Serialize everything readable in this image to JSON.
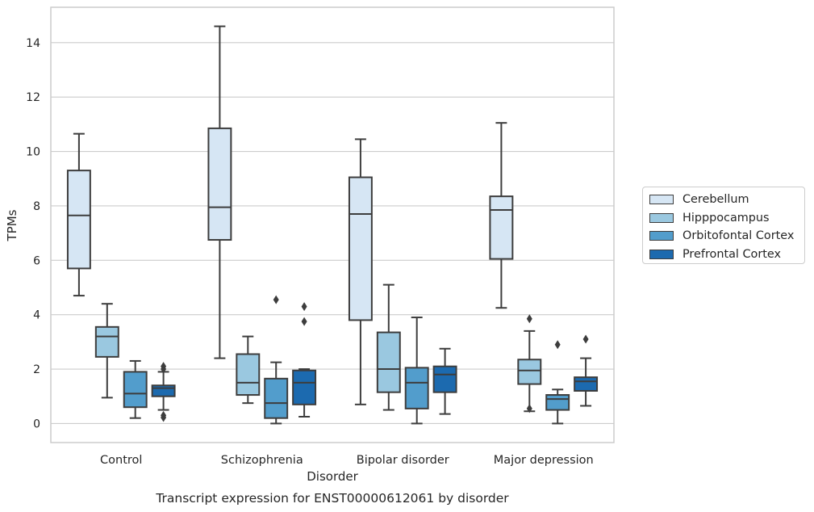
{
  "chart_data": {
    "type": "box",
    "caption": "Transcript expression for ENST00000612061 by disorder",
    "xlabel": "Disorder",
    "ylabel": "TPMs",
    "ylim": [
      -0.7,
      15.3
    ],
    "yticks": [
      0,
      2,
      4,
      6,
      8,
      10,
      12,
      14
    ],
    "grid": "horizontal",
    "legend_position": "center-right, outside plot",
    "categories": [
      "Control",
      "Schizophrenia",
      "Bipolar disorder",
      "Major depression"
    ],
    "series": [
      {
        "name": "Cerebellum",
        "color": "#d6e6f4",
        "boxes": [
          {
            "whislo": 4.7,
            "q1": 5.7,
            "med": 7.65,
            "q3": 9.3,
            "whishi": 10.65,
            "fliers": []
          },
          {
            "whislo": 2.4,
            "q1": 6.75,
            "med": 7.95,
            "q3": 10.85,
            "whishi": 14.6,
            "fliers": []
          },
          {
            "whislo": 0.7,
            "q1": 3.8,
            "med": 7.7,
            "q3": 9.05,
            "whishi": 10.45,
            "fliers": []
          },
          {
            "whislo": 4.25,
            "q1": 6.05,
            "med": 7.85,
            "q3": 8.35,
            "whishi": 11.05,
            "fliers": []
          }
        ]
      },
      {
        "name": "Hipppocampus",
        "color": "#9ac8e0",
        "boxes": [
          {
            "whislo": 0.95,
            "q1": 2.45,
            "med": 3.2,
            "q3": 3.55,
            "whishi": 4.4,
            "fliers": []
          },
          {
            "whislo": 0.75,
            "q1": 1.05,
            "med": 1.5,
            "q3": 2.55,
            "whishi": 3.2,
            "fliers": []
          },
          {
            "whislo": 0.5,
            "q1": 1.15,
            "med": 2.0,
            "q3": 3.35,
            "whishi": 5.1,
            "fliers": []
          },
          {
            "whislo": 0.45,
            "q1": 1.45,
            "med": 1.95,
            "q3": 2.35,
            "whishi": 3.4,
            "fliers": [
              0.55,
              3.85
            ]
          }
        ]
      },
      {
        "name": "Orbitofontal Cortex",
        "color": "#529dcc",
        "boxes": [
          {
            "whislo": 0.2,
            "q1": 0.6,
            "med": 1.1,
            "q3": 1.9,
            "whishi": 2.3,
            "fliers": []
          },
          {
            "whislo": 0.0,
            "q1": 0.2,
            "med": 0.75,
            "q3": 1.65,
            "whishi": 2.25,
            "fliers": [
              4.55
            ]
          },
          {
            "whislo": 0.0,
            "q1": 0.55,
            "med": 1.5,
            "q3": 2.05,
            "whishi": 3.9,
            "fliers": []
          },
          {
            "whislo": 0.0,
            "q1": 0.5,
            "med": 0.9,
            "q3": 1.05,
            "whishi": 1.25,
            "fliers": [
              2.9
            ]
          }
        ]
      },
      {
        "name": "Prefrontal Cortex",
        "color": "#1c6aaf",
        "boxes": [
          {
            "whislo": 0.5,
            "q1": 1.0,
            "med": 1.3,
            "q3": 1.4,
            "whishi": 1.9,
            "fliers": [
              2.1,
              2.0,
              0.3,
              0.22
            ]
          },
          {
            "whislo": 0.25,
            "q1": 0.7,
            "med": 1.5,
            "q3": 1.95,
            "whishi": 2.0,
            "fliers": [
              4.3,
              3.75
            ]
          },
          {
            "whislo": 0.35,
            "q1": 1.15,
            "med": 1.8,
            "q3": 2.1,
            "whishi": 2.75,
            "fliers": []
          },
          {
            "whislo": 0.65,
            "q1": 1.2,
            "med": 1.55,
            "q3": 1.7,
            "whishi": 2.4,
            "fliers": [
              3.1
            ]
          }
        ]
      }
    ]
  }
}
